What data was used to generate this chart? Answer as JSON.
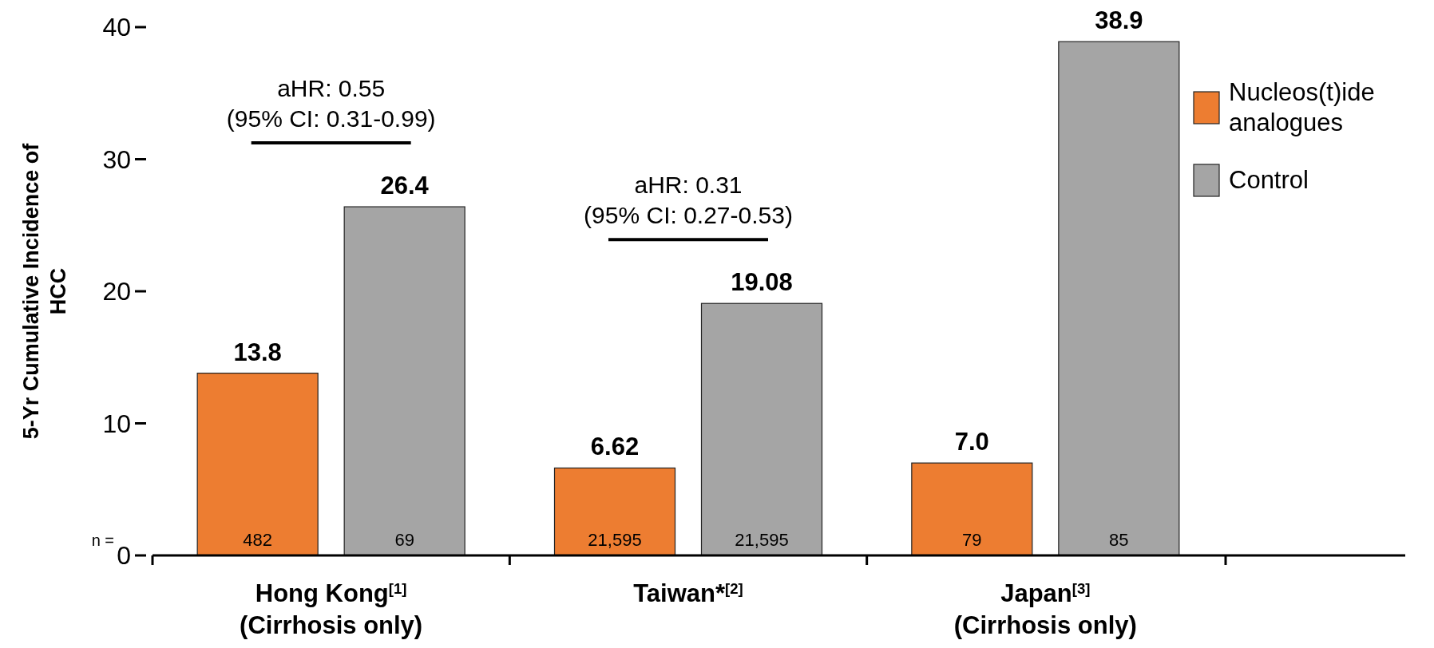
{
  "chart_data": {
    "type": "bar",
    "ylabel": "5-Yr Cumulative Incidence of HCC",
    "categories": [
      "Hong Kong$^{[1]}$\n(Cirrhosis only)",
      "Taiwan*$^{[2]}$",
      "Japan$^{[3]}$\n(Cirrhosis only)"
    ],
    "series": [
      {
        "name": "Nucleos(t)ide analogues",
        "color": "#ed7d31",
        "values": [
          13.8,
          6.62,
          7.0
        ],
        "value_labels": [
          "13.8",
          "6.62",
          "7.0"
        ]
      },
      {
        "name": "Control",
        "color": "#a5a5a5",
        "values": [
          26.4,
          19.08,
          38.9
        ],
        "value_labels": [
          "26.4",
          "19.08",
          "38.9"
        ]
      }
    ],
    "ylim": [
      0,
      40
    ],
    "yticks": [
      0,
      10,
      20,
      30,
      40
    ],
    "grid": false,
    "legend": "top right",
    "annotations": [
      "aHR: 0.55\n(95% CI: 0.31-0.99)",
      "aHR: 0.31\n(95% CI: 0.27-0.53)",
      "n =",
      "482",
      "69",
      "21,595",
      "21,595",
      "79",
      "85"
    ]
  }
}
